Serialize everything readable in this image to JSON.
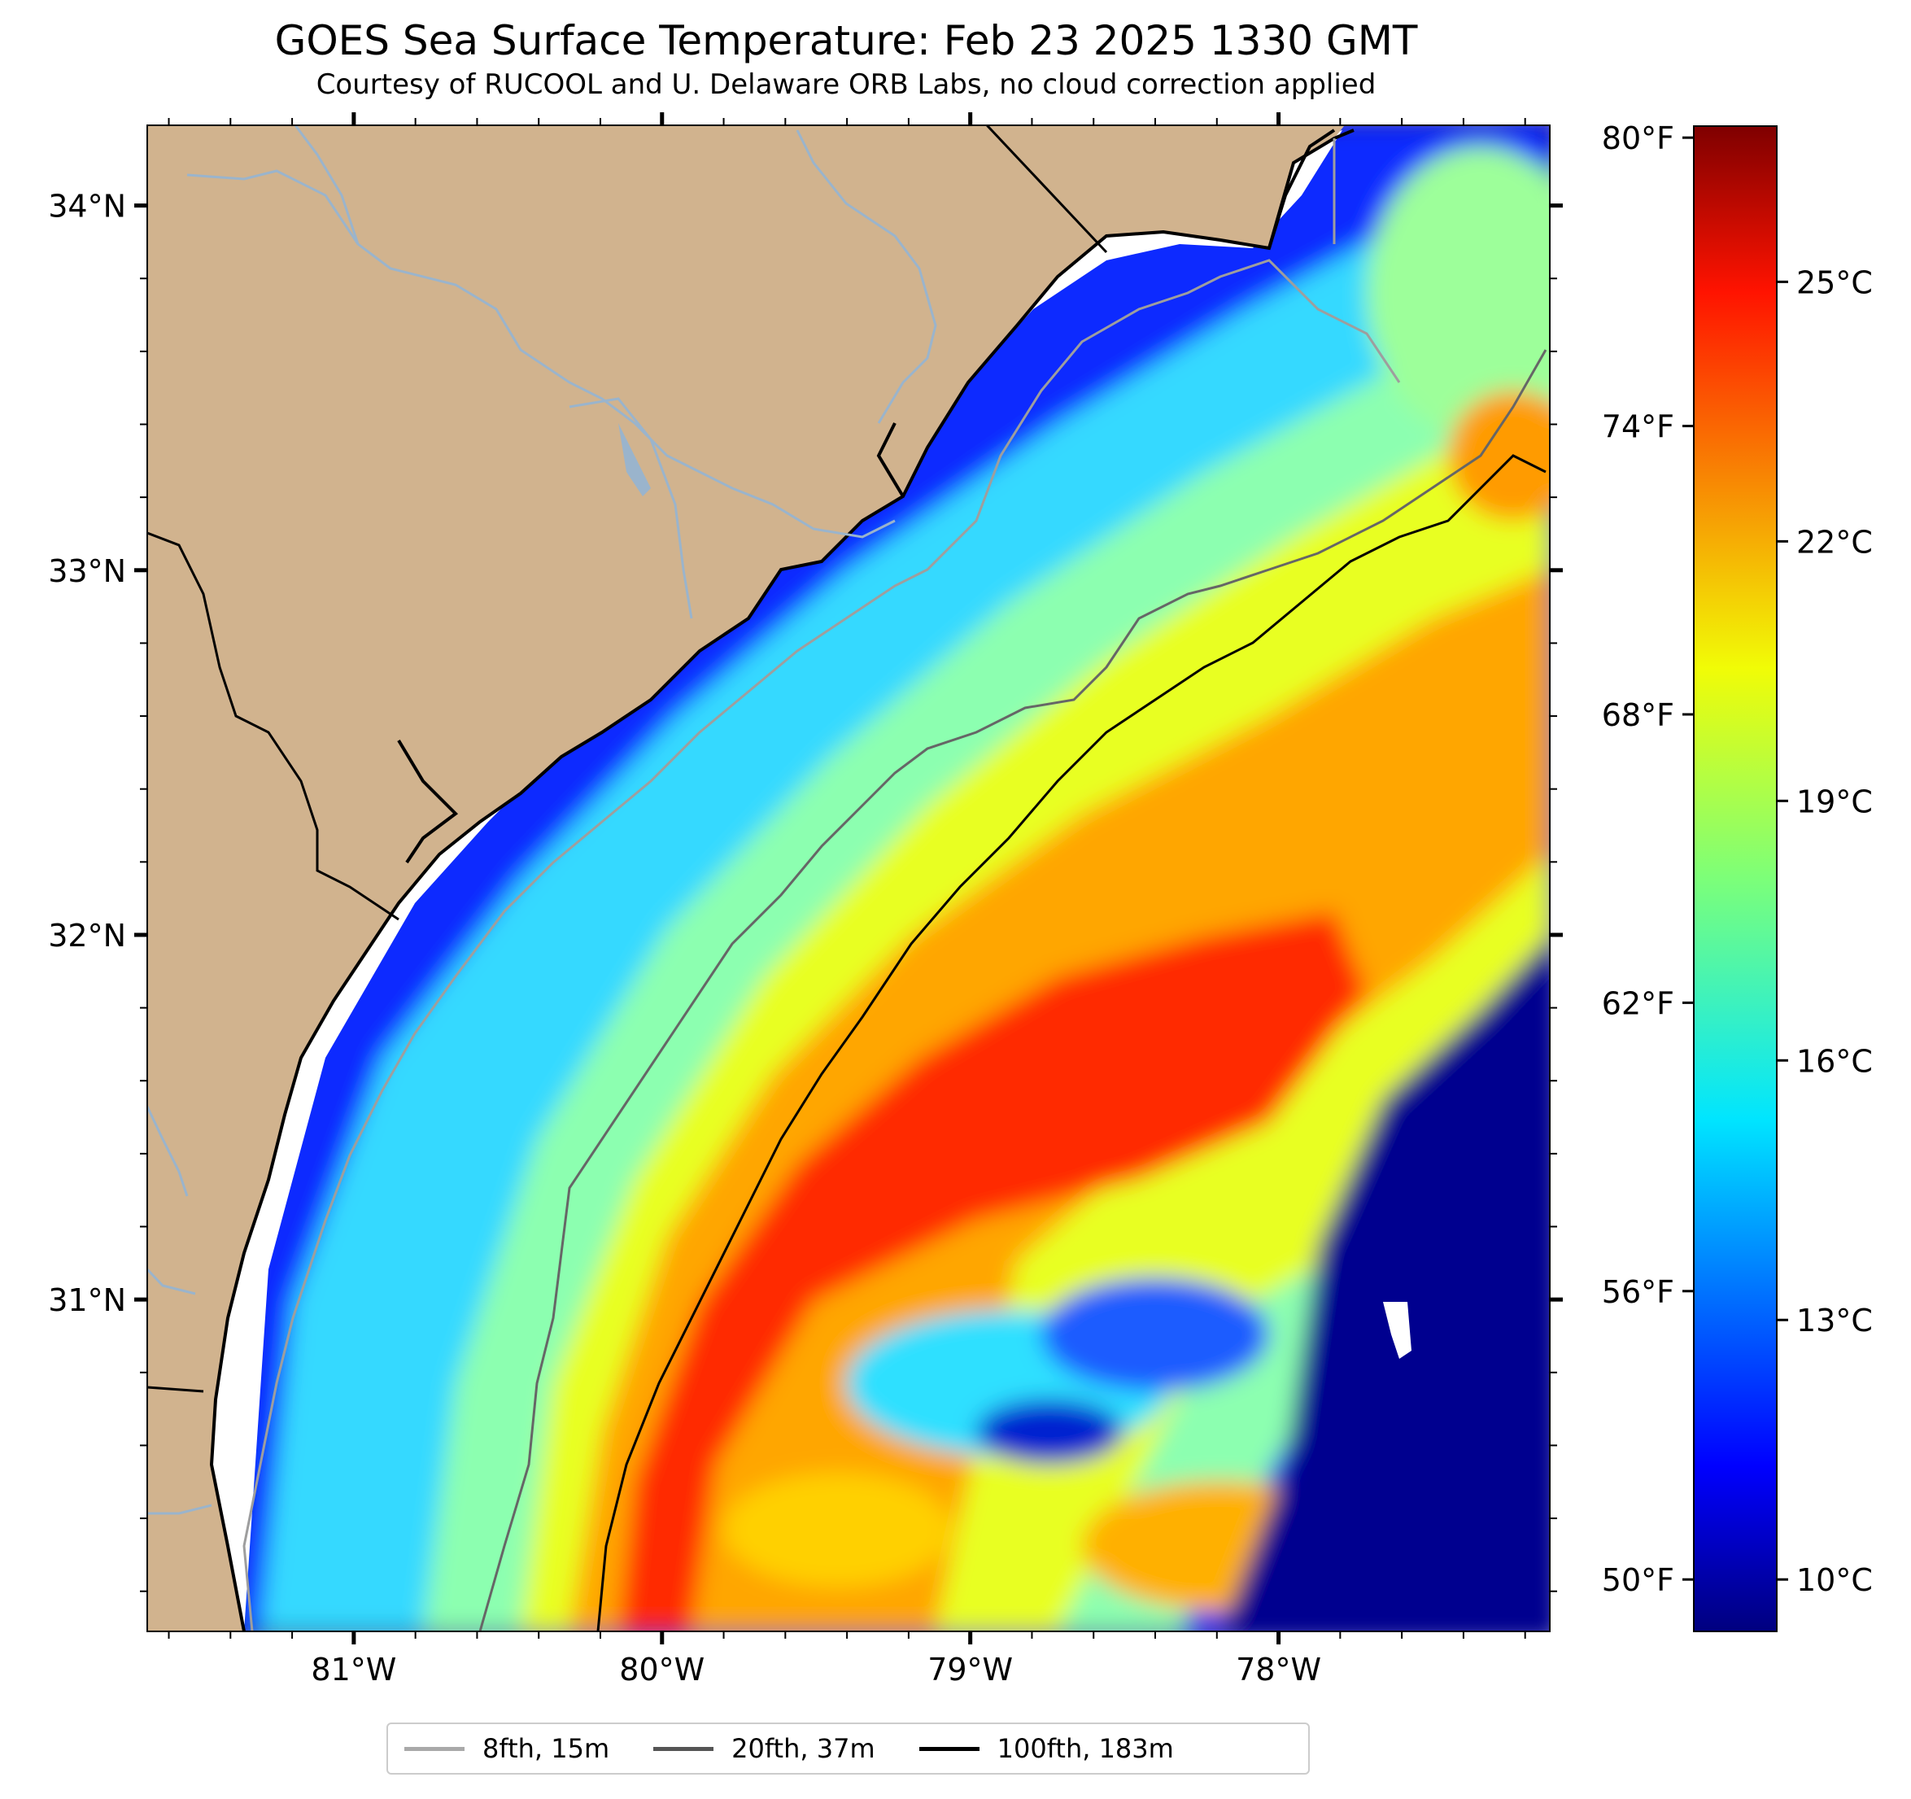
{
  "title": "GOES Sea Surface Temperature: Feb 23 2025 1330 GMT",
  "subtitle": "Courtesy of RUCOOL and U. Delaware ORB Labs, no cloud correction applied",
  "map": {
    "lon_range": [
      -81.67,
      -77.12
    ],
    "lat_range": [
      30.09,
      34.22
    ],
    "land_color": "#d1b38e",
    "river_color": "#9ab4cc",
    "lon_ticks": [
      {
        "value": -81,
        "label": "81°W"
      },
      {
        "value": -80,
        "label": "80°W"
      },
      {
        "value": -79,
        "label": "79°W"
      },
      {
        "value": -78,
        "label": "78°W"
      }
    ],
    "lat_ticks": [
      {
        "value": 34,
        "label": "34°N"
      },
      {
        "value": 33,
        "label": "33°N"
      },
      {
        "value": 32,
        "label": "32°N"
      },
      {
        "value": 31,
        "label": "31°N"
      }
    ]
  },
  "colorbar": {
    "colormap": "jet",
    "range_c": [
      9.4,
      26.8
    ],
    "fahrenheit_ticks": [
      {
        "value": 50,
        "label": "50°F"
      },
      {
        "value": 56,
        "label": "56°F"
      },
      {
        "value": 62,
        "label": "62°F"
      },
      {
        "value": 68,
        "label": "68°F"
      },
      {
        "value": 74,
        "label": "74°F"
      },
      {
        "value": 80,
        "label": "80°F"
      }
    ],
    "celsius_ticks": [
      {
        "value": 10,
        "label": "10°C"
      },
      {
        "value": 13,
        "label": "13°C"
      },
      {
        "value": 16,
        "label": "16°C"
      },
      {
        "value": 19,
        "label": "19°C"
      },
      {
        "value": 22,
        "label": "22°C"
      },
      {
        "value": 25,
        "label": "25°C"
      }
    ]
  },
  "legend": [
    {
      "label": "8fth, 15m",
      "color": "#a9a9a9"
    },
    {
      "label": "20fth, 37m",
      "color": "#555555"
    },
    {
      "label": "100fth, 183m",
      "color": "#000000"
    }
  ]
}
